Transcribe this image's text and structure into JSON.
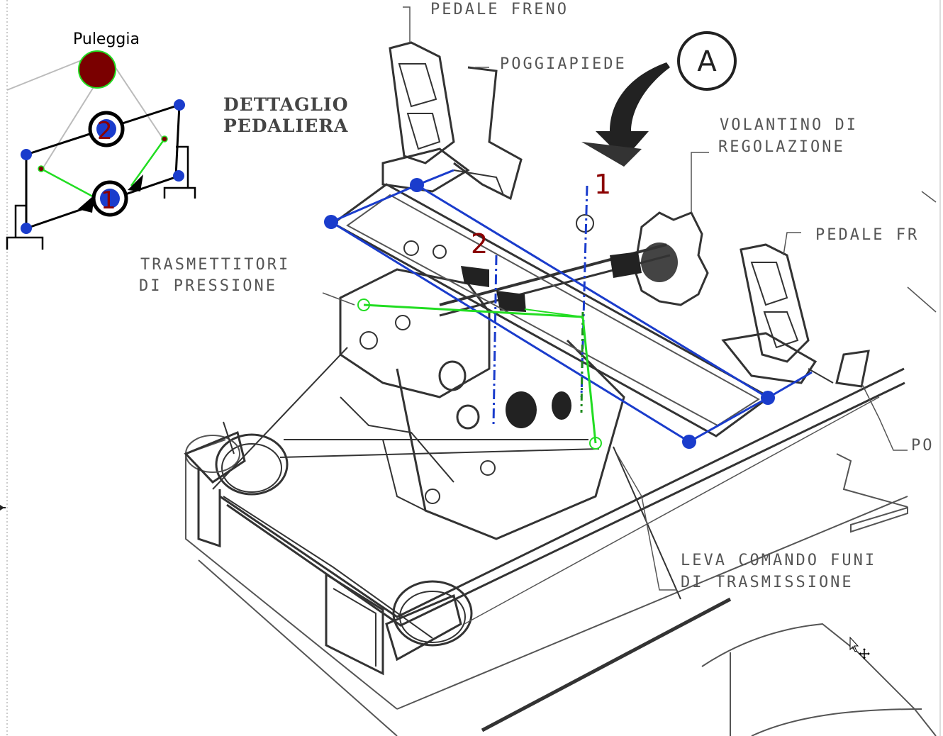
{
  "colors": {
    "mechanism_link": "#1a3ccc",
    "joint": "#1a3ccc",
    "cable": "#22dd22",
    "pulley": "#7a0000",
    "marker_number": "#8b0000",
    "ink": "#333333"
  },
  "inset": {
    "pulley_label": "Puleggia",
    "pivot_1": "1",
    "pivot_2": "2"
  },
  "drawing": {
    "title_line1": "DETTAGLIO",
    "title_line2": "PEDALIERA",
    "callout_a": "A",
    "marker_1": "1",
    "marker_2": "2",
    "labels": {
      "pedale_freno_top": "PEDALE FRENO",
      "poggiapiede_top": "POGGIAPIEDE",
      "volantino_line1": "VOLANTINO DI",
      "volantino_line2": "REGOLAZIONE",
      "pedale_freno_right": "PEDALE FR",
      "trasmettitori_line1": "TRASMETTITORI",
      "trasmettitori_line2": "DI PRESSIONE",
      "poggiapiede_right": "PO",
      "leva_line1": "LEVA COMANDO FUNI",
      "leva_line2": "DI TRASMISSIONE"
    }
  },
  "icons": [
    "cursor-arrow-icon",
    "move-crosshair-icon",
    "ruler-marker-icon"
  ]
}
